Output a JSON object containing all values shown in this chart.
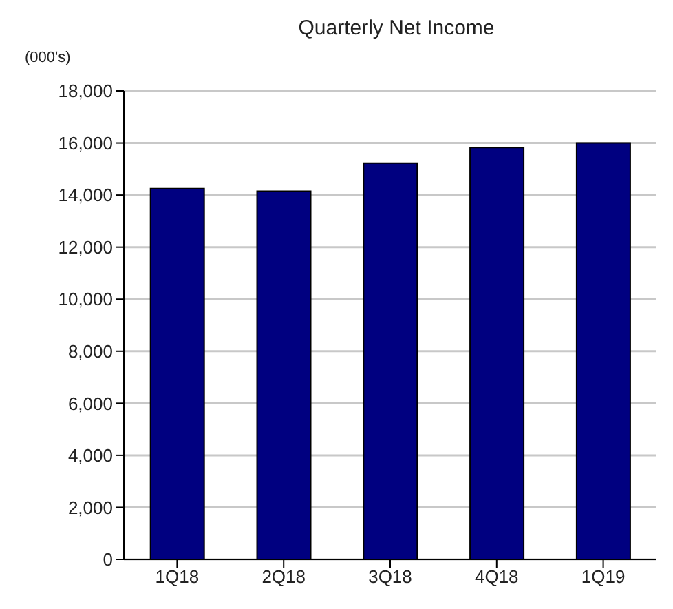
{
  "chart_data": {
    "type": "bar",
    "title": "Quarterly Net Income",
    "ylabel": "(000's)",
    "categories": [
      "1Q18",
      "2Q18",
      "3Q18",
      "4Q18",
      "1Q19"
    ],
    "values": [
      14250,
      14150,
      15230,
      15820,
      16000
    ],
    "color": "#000080",
    "ylim": [
      0,
      18000
    ],
    "yticks": [
      0,
      {
        "value": 2000,
        "label": "2,000"
      },
      {
        "value": 4000,
        "label": "4,000"
      },
      {
        "value": 6000,
        "label": "6,000"
      },
      {
        "value": 8000,
        "label": "8,000"
      },
      {
        "value": 10000,
        "label": "10,000"
      },
      {
        "value": 12000,
        "label": "12,000"
      },
      {
        "value": 14000,
        "label": "14,000"
      },
      {
        "value": 16000,
        "label": "16,000"
      },
      {
        "value": 18000,
        "label": "18,000"
      }
    ],
    "grid": "y"
  }
}
